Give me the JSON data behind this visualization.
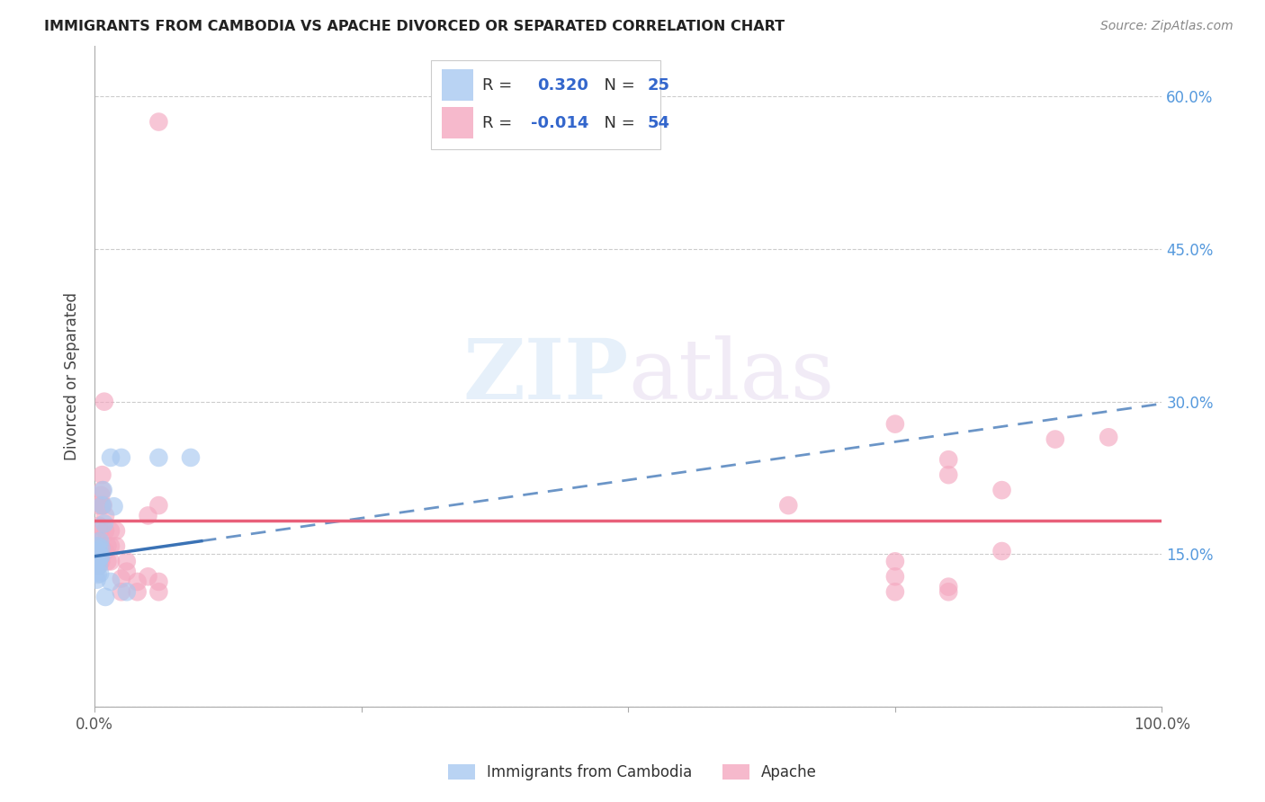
{
  "title": "IMMIGRANTS FROM CAMBODIA VS APACHE DIVORCED OR SEPARATED CORRELATION CHART",
  "source": "Source: ZipAtlas.com",
  "ylabel": "Divorced or Separated",
  "xlim": [
    0.0,
    1.0
  ],
  "ylim": [
    0.0,
    0.65
  ],
  "yticks": [
    0.0,
    0.15,
    0.3,
    0.45,
    0.6
  ],
  "ytick_labels_right": [
    "",
    "15.0%",
    "30.0%",
    "45.0%",
    "60.0%"
  ],
  "legend_blue_R": "0.320",
  "legend_blue_N": "25",
  "legend_pink_R": "-0.014",
  "legend_pink_N": "54",
  "blue_label": "Immigrants from Cambodia",
  "pink_label": "Apache",
  "blue_color": "#A8C8F0",
  "pink_color": "#F4A8C0",
  "blue_edge_color": "#A8C8F0",
  "pink_edge_color": "#F4A8C0",
  "blue_trend_color": "#3A72B5",
  "pink_trend_color": "#E8607A",
  "blue_points": [
    [
      0.001,
      0.132
    ],
    [
      0.001,
      0.152
    ],
    [
      0.002,
      0.142
    ],
    [
      0.002,
      0.125
    ],
    [
      0.003,
      0.158
    ],
    [
      0.003,
      0.143
    ],
    [
      0.003,
      0.13
    ],
    [
      0.004,
      0.154
    ],
    [
      0.004,
      0.139
    ],
    [
      0.005,
      0.163
    ],
    [
      0.005,
      0.147
    ],
    [
      0.005,
      0.131
    ],
    [
      0.006,
      0.156
    ],
    [
      0.006,
      0.148
    ],
    [
      0.007,
      0.198
    ],
    [
      0.008,
      0.213
    ],
    [
      0.009,
      0.18
    ],
    [
      0.01,
      0.108
    ],
    [
      0.015,
      0.245
    ],
    [
      0.015,
      0.123
    ],
    [
      0.018,
      0.197
    ],
    [
      0.025,
      0.245
    ],
    [
      0.03,
      0.113
    ],
    [
      0.06,
      0.245
    ],
    [
      0.09,
      0.245
    ]
  ],
  "pink_points": [
    [
      0.002,
      0.153
    ],
    [
      0.003,
      0.143
    ],
    [
      0.003,
      0.158
    ],
    [
      0.003,
      0.138
    ],
    [
      0.004,
      0.153
    ],
    [
      0.004,
      0.163
    ],
    [
      0.004,
      0.178
    ],
    [
      0.004,
      0.198
    ],
    [
      0.005,
      0.146
    ],
    [
      0.005,
      0.173
    ],
    [
      0.005,
      0.158
    ],
    [
      0.006,
      0.143
    ],
    [
      0.006,
      0.208
    ],
    [
      0.006,
      0.158
    ],
    [
      0.007,
      0.198
    ],
    [
      0.007,
      0.213
    ],
    [
      0.007,
      0.228
    ],
    [
      0.008,
      0.198
    ],
    [
      0.009,
      0.3
    ],
    [
      0.01,
      0.188
    ],
    [
      0.01,
      0.153
    ],
    [
      0.01,
      0.173
    ],
    [
      0.012,
      0.158
    ],
    [
      0.012,
      0.143
    ],
    [
      0.015,
      0.173
    ],
    [
      0.015,
      0.158
    ],
    [
      0.015,
      0.143
    ],
    [
      0.02,
      0.173
    ],
    [
      0.02,
      0.158
    ],
    [
      0.025,
      0.113
    ],
    [
      0.025,
      0.126
    ],
    [
      0.03,
      0.143
    ],
    [
      0.03,
      0.133
    ],
    [
      0.04,
      0.113
    ],
    [
      0.04,
      0.123
    ],
    [
      0.05,
      0.188
    ],
    [
      0.05,
      0.128
    ],
    [
      0.06,
      0.123
    ],
    [
      0.06,
      0.113
    ],
    [
      0.06,
      0.198
    ],
    [
      0.06,
      0.575
    ],
    [
      0.65,
      0.198
    ],
    [
      0.75,
      0.278
    ],
    [
      0.75,
      0.143
    ],
    [
      0.75,
      0.128
    ],
    [
      0.75,
      0.113
    ],
    [
      0.8,
      0.243
    ],
    [
      0.8,
      0.228
    ],
    [
      0.8,
      0.113
    ],
    [
      0.8,
      0.118
    ],
    [
      0.85,
      0.213
    ],
    [
      0.85,
      0.153
    ],
    [
      0.9,
      0.263
    ],
    [
      0.95,
      0.265
    ]
  ],
  "blue_trend_x0": 0.0,
  "blue_trend_x_solid_end": 0.1,
  "blue_trend_x1": 1.0,
  "blue_trend_y0": 0.148,
  "blue_trend_y1": 0.298,
  "pink_trend_y": 0.183,
  "background_color": "#FFFFFF",
  "grid_color": "#CCCCCC"
}
